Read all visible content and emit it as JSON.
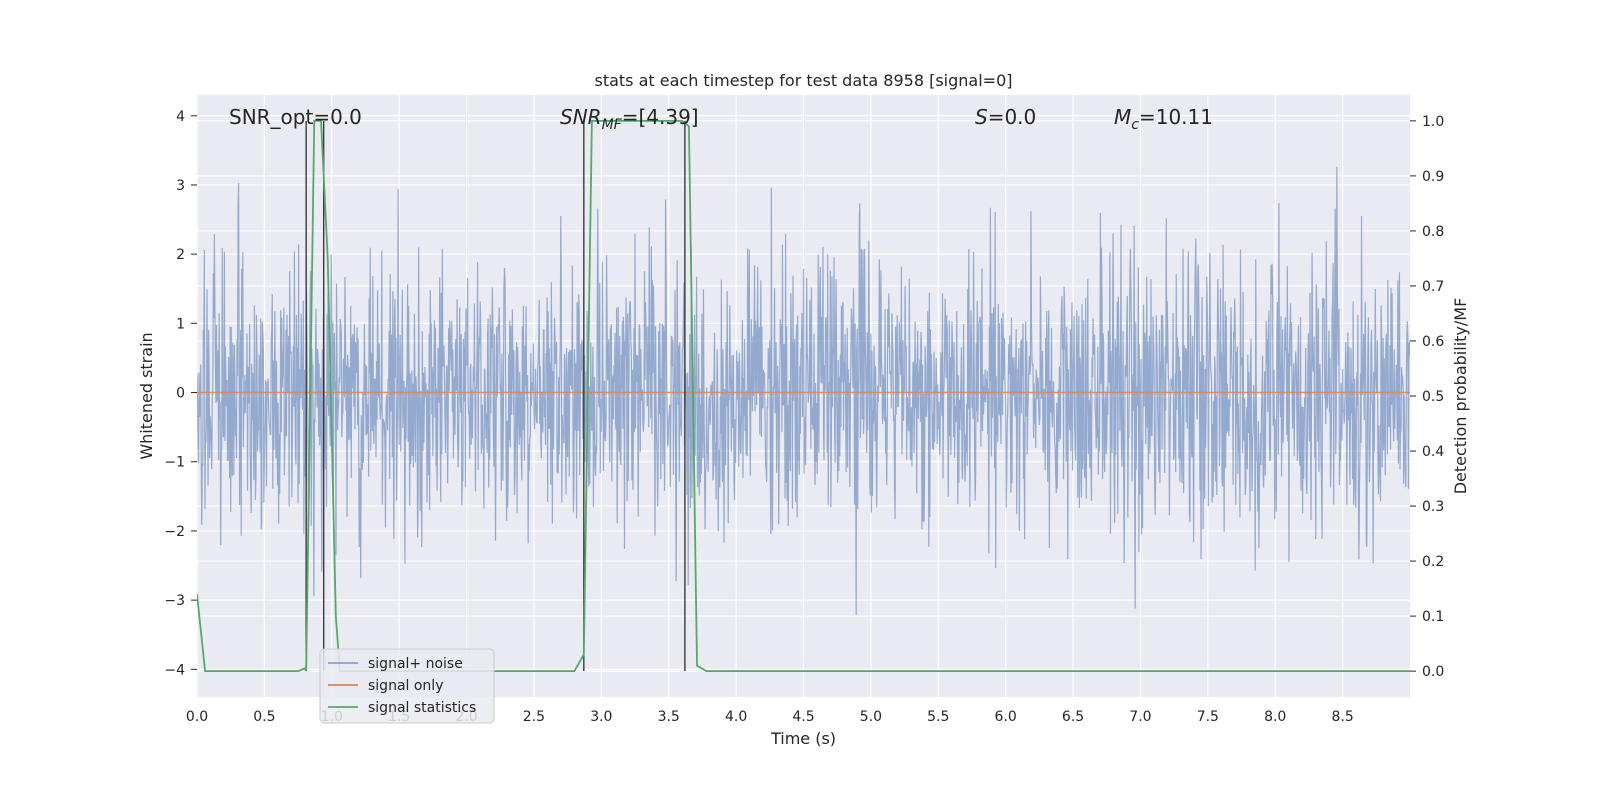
{
  "chart_data": {
    "type": "line",
    "title": "stats at each timestep for test data 8958 [signal=0]",
    "xlabel": "Time (s)",
    "ylabel": "Whitened strain",
    "y2label": "Detection probability/MF",
    "xlim": [
      0.0,
      9.0
    ],
    "ylim": [
      -4.4,
      4.3
    ],
    "y2lim": [
      -0.047,
      1.047
    ],
    "xticks": [
      0.0,
      0.5,
      1.0,
      1.5,
      2.0,
      2.5,
      3.0,
      3.5,
      4.0,
      4.5,
      5.0,
      5.5,
      6.0,
      6.5,
      7.0,
      7.5,
      8.0,
      8.5
    ],
    "yticks": [
      4,
      3,
      2,
      1,
      0,
      -1,
      -2,
      -3,
      -4
    ],
    "y2ticks": [
      1.0,
      0.9,
      0.8,
      0.7,
      0.6,
      0.5,
      0.4,
      0.3,
      0.2,
      0.1,
      0.0
    ],
    "grid": true,
    "legend_position": "lower-left",
    "annotations": {
      "snr_opt": "SNR_opt=0.0",
      "snr_mf_base": "SNR",
      "snr_mf_sub": "MF",
      "snr_mf_value": "=[4.39]",
      "s_var": "S",
      "s_value": "=0.0",
      "mc_base": "M",
      "mc_sub": "c",
      "mc_value": "=10.11"
    },
    "series": [
      {
        "name": "signal+ noise",
        "color": "#4c72b0",
        "kind": "noise",
        "noise_sigma": 1.0,
        "sample_rate_hz": 256,
        "note": "whitened noise, approx. unit variance, peaks to about +/-4"
      },
      {
        "name": "signal only",
        "color": "#dd8452",
        "kind": "line",
        "x": [
          0.0,
          9.0
        ],
        "y": [
          0.0,
          0.0
        ]
      },
      {
        "name": "signal statistics",
        "color": "#55a868",
        "kind": "line",
        "axis": "right",
        "x": [
          0.0,
          0.06,
          0.1,
          0.3,
          0.5,
          0.75,
          0.8,
          0.81,
          0.87,
          0.92,
          0.97,
          1.03,
          1.06,
          1.1,
          2.8,
          2.87,
          2.93,
          2.98,
          3.6,
          3.65,
          3.71,
          3.78,
          9.0
        ],
        "y": [
          0.14,
          0.0,
          0.0,
          0.0,
          0.0,
          0.0,
          0.005,
          0.0,
          1.0,
          1.0,
          0.75,
          0.1,
          0.0,
          0.0,
          0.0,
          0.03,
          1.0,
          1.0,
          1.0,
          0.99,
          0.01,
          0.0,
          0.0
        ]
      }
    ],
    "vlines": [
      0.81,
      0.94,
      2.87,
      3.62
    ]
  }
}
